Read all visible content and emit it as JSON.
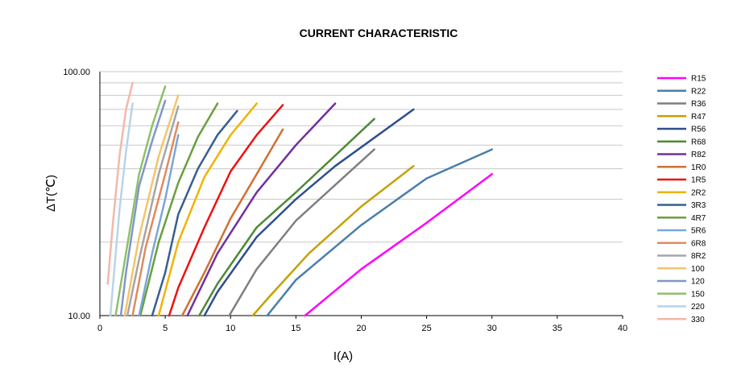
{
  "chart_data": {
    "type": "line",
    "title": "CURRENT CHARACTERISTIC",
    "xlabel": "I(A)",
    "ylabel": "ΔT(℃)",
    "xlim": [
      0,
      40
    ],
    "ylim": [
      10,
      100
    ],
    "yscale": "log",
    "x_ticks": [
      "0",
      "5",
      "10",
      "15",
      "20",
      "25",
      "30",
      "35",
      "40"
    ],
    "y_tick_labels": [
      "10.00",
      "100.00"
    ],
    "grid": "horizontal",
    "legend": "right",
    "series": [
      {
        "name": "R15",
        "color": "#ff00ff",
        "points": [
          [
            15.7,
            10
          ],
          [
            20,
            15.5
          ],
          [
            25,
            24
          ],
          [
            30,
            38
          ]
        ]
      },
      {
        "name": "R22",
        "color": "#4a7ea8",
        "points": [
          [
            12.8,
            10
          ],
          [
            15,
            14
          ],
          [
            20,
            23.5
          ],
          [
            25,
            36.5
          ],
          [
            30,
            48
          ]
        ]
      },
      {
        "name": "R36",
        "color": "#7f7f7f",
        "points": [
          [
            9.9,
            10
          ],
          [
            12,
            15.5
          ],
          [
            15,
            24.5
          ],
          [
            21,
            48
          ]
        ]
      },
      {
        "name": "R47",
        "color": "#c5a000",
        "points": [
          [
            11.7,
            10
          ],
          [
            13,
            12
          ],
          [
            16,
            18
          ],
          [
            20,
            28
          ],
          [
            24,
            41
          ]
        ]
      },
      {
        "name": "R56",
        "color": "#2e4f8f",
        "points": [
          [
            8,
            10
          ],
          [
            9,
            12.5
          ],
          [
            12,
            21
          ],
          [
            15,
            30
          ],
          [
            18,
            41
          ],
          [
            24,
            70
          ]
        ]
      },
      {
        "name": "R68",
        "color": "#4e8a36",
        "points": [
          [
            7.6,
            10
          ],
          [
            9,
            13.5
          ],
          [
            12,
            23
          ],
          [
            15,
            32
          ],
          [
            21,
            64
          ]
        ]
      },
      {
        "name": "R82",
        "color": "#7030a0",
        "points": [
          [
            6.7,
            10
          ],
          [
            9,
            18
          ],
          [
            12,
            32
          ],
          [
            15,
            50
          ],
          [
            18,
            74
          ]
        ]
      },
      {
        "name": "1R0",
        "color": "#d07030",
        "points": [
          [
            6.3,
            10
          ],
          [
            8,
            15
          ],
          [
            10,
            25
          ],
          [
            12,
            38
          ],
          [
            14,
            58
          ]
        ]
      },
      {
        "name": "1R5",
        "color": "#ee1111",
        "points": [
          [
            5.3,
            10
          ],
          [
            6,
            13
          ],
          [
            8,
            23
          ],
          [
            10,
            39
          ],
          [
            12,
            55
          ],
          [
            14,
            73
          ]
        ]
      },
      {
        "name": "2R2",
        "color": "#f0b400",
        "points": [
          [
            4.5,
            10
          ],
          [
            6,
            20
          ],
          [
            8,
            37
          ],
          [
            10,
            55
          ],
          [
            12,
            74
          ]
        ]
      },
      {
        "name": "3R3",
        "color": "#365f91",
        "points": [
          [
            4,
            10
          ],
          [
            5,
            15
          ],
          [
            6,
            26
          ],
          [
            7.5,
            40
          ],
          [
            9,
            55
          ],
          [
            10.5,
            69
          ]
        ]
      },
      {
        "name": "4R7",
        "color": "#6a9f3c",
        "points": [
          [
            3.1,
            10
          ],
          [
            4.5,
            20
          ],
          [
            6,
            35
          ],
          [
            7.5,
            54
          ],
          [
            9,
            74
          ]
        ]
      },
      {
        "name": "5R6",
        "color": "#7aa7d9",
        "points": [
          [
            3,
            10
          ],
          [
            4,
            18
          ],
          [
            5,
            30
          ],
          [
            6,
            55
          ]
        ]
      },
      {
        "name": "6R8",
        "color": "#e08a60",
        "points": [
          [
            2.5,
            10
          ],
          [
            3.5,
            19
          ],
          [
            5,
            38
          ],
          [
            6,
            62
          ]
        ]
      },
      {
        "name": "8R2",
        "color": "#a5a5a5",
        "points": [
          [
            2.1,
            10
          ],
          [
            3,
            17
          ],
          [
            4.5,
            38
          ],
          [
            6,
            72
          ]
        ]
      },
      {
        "name": "100",
        "color": "#f5c46a",
        "points": [
          [
            1.9,
            10
          ],
          [
            3,
            21
          ],
          [
            4.5,
            45
          ],
          [
            6,
            80
          ]
        ]
      },
      {
        "name": "120",
        "color": "#8096c8",
        "points": [
          [
            1.6,
            10
          ],
          [
            2,
            15
          ],
          [
            3,
            34
          ],
          [
            4,
            52
          ],
          [
            5,
            76
          ]
        ]
      },
      {
        "name": "150",
        "color": "#8dc06a",
        "points": [
          [
            1.2,
            10
          ],
          [
            2,
            18
          ],
          [
            3,
            38
          ],
          [
            4,
            60
          ],
          [
            5,
            87
          ]
        ]
      },
      {
        "name": "220",
        "color": "#b8d4ea",
        "points": [
          [
            0.8,
            10
          ],
          [
            1.5,
            27
          ],
          [
            2,
            47
          ],
          [
            2.5,
            74
          ]
        ]
      },
      {
        "name": "330",
        "color": "#f2b8a8",
        "points": [
          [
            0.6,
            13.5
          ],
          [
            1,
            24
          ],
          [
            1.5,
            45
          ],
          [
            2,
            70
          ],
          [
            2.5,
            90
          ]
        ]
      }
    ]
  }
}
